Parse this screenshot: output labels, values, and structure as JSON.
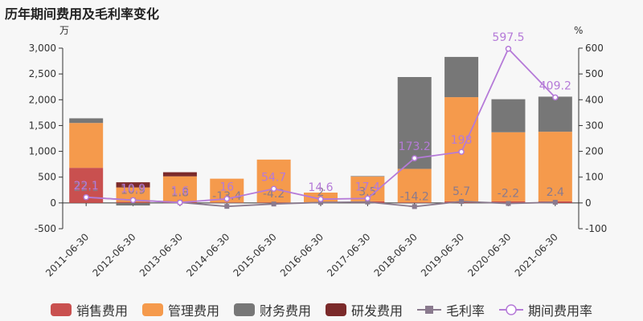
{
  "title": "历年期间费用及毛利率变化",
  "chart_data": {
    "type": "bar",
    "categories": [
      "2011-06-30",
      "2012-06-30",
      "2013-06-30",
      "2014-06-30",
      "2015-06-30",
      "2016-06-30",
      "2017-06-30",
      "2018-06-30",
      "2019-06-30",
      "2020-06-30",
      "2021-06-30"
    ],
    "left_unit": "万",
    "right_unit": "%",
    "ylim_left": [
      -500,
      3000
    ],
    "yticks_left": [
      "-500",
      "0",
      "500",
      "1,000",
      "1,500",
      "2,000",
      "2,500",
      "3,000"
    ],
    "ylim_right": [
      -100,
      600
    ],
    "yticks_right": [
      "-100",
      "0",
      "100",
      "200",
      "300",
      "400",
      "500",
      "600"
    ],
    "series": [
      {
        "name": "销售费用",
        "kind": "bar",
        "color": "#c9504f",
        "values": [
          680,
          20,
          15,
          10,
          10,
          10,
          30,
          10,
          30,
          30,
          30
        ]
      },
      {
        "name": "管理费用",
        "kind": "bar",
        "color": "#f59a4c",
        "values": [
          870,
          280,
          500,
          460,
          830,
          190,
          480,
          650,
          2020,
          1340,
          1350
        ]
      },
      {
        "name": "财务费用",
        "kind": "bar",
        "color": "#777777",
        "values": [
          90,
          -50,
          -5,
          -10,
          0,
          -5,
          10,
          1780,
          780,
          640,
          680
        ]
      },
      {
        "name": "研发费用",
        "kind": "bar",
        "color": "#7b2a2a",
        "values": [
          0,
          100,
          80,
          0,
          0,
          0,
          0,
          0,
          0,
          0,
          0
        ]
      },
      {
        "name": "毛利率",
        "kind": "line",
        "color": "#8a7a8e",
        "values": [
          22.1,
          10.9,
          1.8,
          -13.4,
          -4.2,
          2,
          3.5,
          -14.2,
          5.7,
          -2.2,
          2.4
        ],
        "labels": [
          "22.1",
          "10.9",
          "1.8",
          "-13.4",
          "-4.2",
          "2",
          "3.5",
          "-14.2",
          "5.7",
          "-2.2",
          "2.4"
        ]
      },
      {
        "name": "期间费用率",
        "kind": "line",
        "color": "#b57ad8",
        "values": [
          22.1,
          10.9,
          1.6,
          16,
          54.7,
          14.6,
          17.4,
          173.2,
          198,
          597.5,
          409.2
        ],
        "labels": [
          "22.1",
          "10.9",
          "1.6",
          "16",
          "54.7",
          "14.6",
          "17.4",
          "173.2",
          "198",
          "597.5",
          "409.2"
        ]
      }
    ]
  },
  "legend": {
    "items": [
      {
        "label": "销售费用",
        "color": "#c9504f",
        "type": "box"
      },
      {
        "label": "管理费用",
        "color": "#f59a4c",
        "type": "box"
      },
      {
        "label": "财务费用",
        "color": "#777777",
        "type": "box"
      },
      {
        "label": "研发费用",
        "color": "#7b2a2a",
        "type": "box"
      },
      {
        "label": "毛利率",
        "color": "#8a7a8e",
        "type": "line-square"
      },
      {
        "label": "期间费用率",
        "color": "#b57ad8",
        "type": "line-circle"
      }
    ]
  }
}
